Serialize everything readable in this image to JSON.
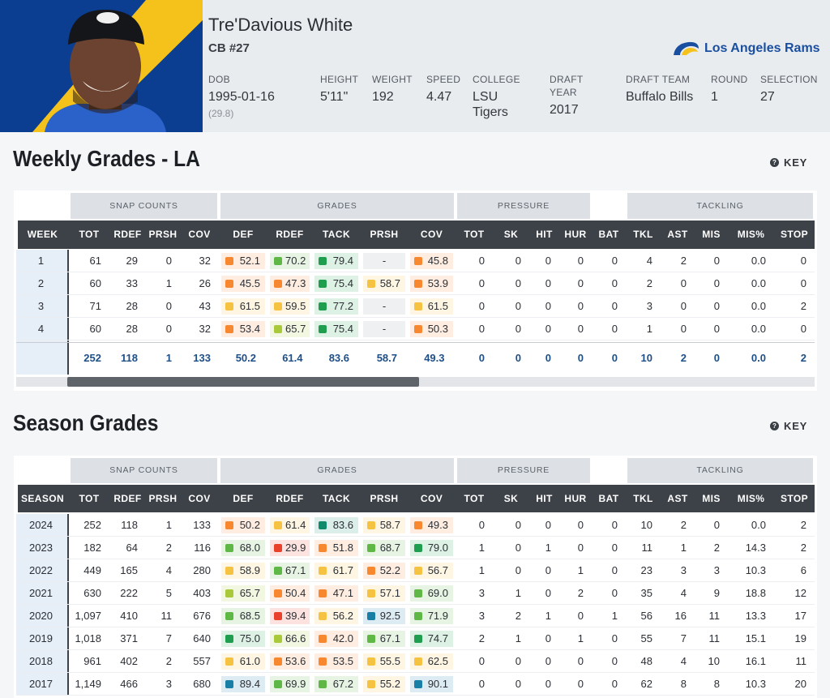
{
  "header": {
    "name": "Tre'Davious White",
    "position": "CB #27",
    "team": "Los Angeles Rams",
    "fields": [
      {
        "label": "DOB",
        "value": "1995-01-16",
        "sub": "(29.8)"
      },
      {
        "label": "HEIGHT",
        "value": "5'11\""
      },
      {
        "label": "WEIGHT",
        "value": "192"
      },
      {
        "label": "SPEED",
        "value": "4.47"
      },
      {
        "label": "COLLEGE",
        "value": "LSU Tigers"
      },
      {
        "label": "DRAFT YEAR",
        "value": "2017"
      },
      {
        "label": "DRAFT TEAM",
        "value": "Buffalo Bills"
      },
      {
        "label": "ROUND",
        "value": "1"
      },
      {
        "label": "SELECTION",
        "value": "27"
      }
    ]
  },
  "weekly": {
    "title": "Weekly Grades - LA",
    "key": "KEY",
    "groups": [
      "SNAP COUNTS",
      "GRADES",
      "PRESSURE",
      "TACKLING"
    ],
    "columns": [
      "WEEK",
      "TOT",
      "RDEF",
      "PRSH",
      "COV",
      "DEF",
      "RDEF",
      "TACK",
      "PRSH",
      "COV",
      "TOT",
      "SK",
      "HIT",
      "HUR",
      "BAT",
      "TKL",
      "AST",
      "MIS",
      "MIS%",
      "STOP"
    ],
    "rows": [
      [
        "1",
        "61",
        "29",
        "0",
        "32",
        "52.1",
        "70.2",
        "79.4",
        "-",
        "45.8",
        "0",
        "0",
        "0",
        "0",
        "0",
        "4",
        "2",
        "0",
        "0.0",
        "0"
      ],
      [
        "2",
        "60",
        "33",
        "1",
        "26",
        "45.5",
        "47.3",
        "75.4",
        "58.7",
        "53.9",
        "0",
        "0",
        "0",
        "0",
        "0",
        "2",
        "0",
        "0",
        "0.0",
        "0"
      ],
      [
        "3",
        "71",
        "28",
        "0",
        "43",
        "61.5",
        "59.5",
        "77.2",
        "-",
        "61.5",
        "0",
        "0",
        "0",
        "0",
        "0",
        "3",
        "0",
        "0",
        "0.0",
        "2"
      ],
      [
        "4",
        "60",
        "28",
        "0",
        "32",
        "53.4",
        "65.7",
        "75.4",
        "-",
        "50.3",
        "0",
        "0",
        "0",
        "0",
        "0",
        "1",
        "0",
        "0",
        "0.0",
        "0"
      ]
    ],
    "totals": [
      "252",
      "118",
      "1",
      "133",
      "50.2",
      "61.4",
      "83.6",
      "58.7",
      "49.3",
      "0",
      "0",
      "0",
      "0",
      "0",
      "10",
      "2",
      "0",
      "0.0",
      "2"
    ]
  },
  "season": {
    "title": "Season Grades",
    "key": "KEY",
    "groups": [
      "SNAP COUNTS",
      "GRADES",
      "PRESSURE",
      "TACKLING"
    ],
    "columns": [
      "SEASON",
      "TOT",
      "RDEF",
      "PRSH",
      "COV",
      "DEF",
      "RDEF",
      "TACK",
      "PRSH",
      "COV",
      "TOT",
      "SK",
      "HIT",
      "HUR",
      "BAT",
      "TKL",
      "AST",
      "MIS",
      "MIS%",
      "STOP"
    ],
    "rows": [
      [
        "2024",
        "252",
        "118",
        "1",
        "133",
        "50.2",
        "61.4",
        "83.6",
        "58.7",
        "49.3",
        "0",
        "0",
        "0",
        "0",
        "0",
        "10",
        "2",
        "0",
        "0.0",
        "2"
      ],
      [
        "2023",
        "182",
        "64",
        "2",
        "116",
        "68.0",
        "29.9",
        "51.8",
        "68.7",
        "79.0",
        "1",
        "0",
        "1",
        "0",
        "0",
        "11",
        "1",
        "2",
        "14.3",
        "2"
      ],
      [
        "2022",
        "449",
        "165",
        "4",
        "280",
        "58.9",
        "67.1",
        "61.7",
        "52.2",
        "56.7",
        "1",
        "0",
        "0",
        "1",
        "0",
        "23",
        "3",
        "3",
        "10.3",
        "6"
      ],
      [
        "2021",
        "630",
        "222",
        "5",
        "403",
        "65.7",
        "50.4",
        "47.1",
        "57.1",
        "69.0",
        "3",
        "1",
        "0",
        "2",
        "0",
        "35",
        "4",
        "9",
        "18.8",
        "12"
      ],
      [
        "2020",
        "1,097",
        "410",
        "11",
        "676",
        "68.5",
        "39.4",
        "56.2",
        "92.5",
        "71.9",
        "3",
        "2",
        "1",
        "0",
        "1",
        "56",
        "16",
        "11",
        "13.3",
        "17"
      ],
      [
        "2019",
        "1,018",
        "371",
        "7",
        "640",
        "75.0",
        "66.6",
        "42.0",
        "67.1",
        "74.7",
        "2",
        "1",
        "0",
        "1",
        "0",
        "55",
        "7",
        "11",
        "15.1",
        "19"
      ],
      [
        "2018",
        "961",
        "402",
        "2",
        "557",
        "61.0",
        "53.6",
        "53.5",
        "55.5",
        "62.5",
        "0",
        "0",
        "0",
        "0",
        "0",
        "48",
        "4",
        "10",
        "16.1",
        "11"
      ],
      [
        "2017",
        "1,149",
        "466",
        "3",
        "680",
        "89.4",
        "69.9",
        "67.2",
        "55.2",
        "90.1",
        "0",
        "0",
        "0",
        "0",
        "0",
        "62",
        "8",
        "8",
        "10.3",
        "20"
      ]
    ]
  }
}
